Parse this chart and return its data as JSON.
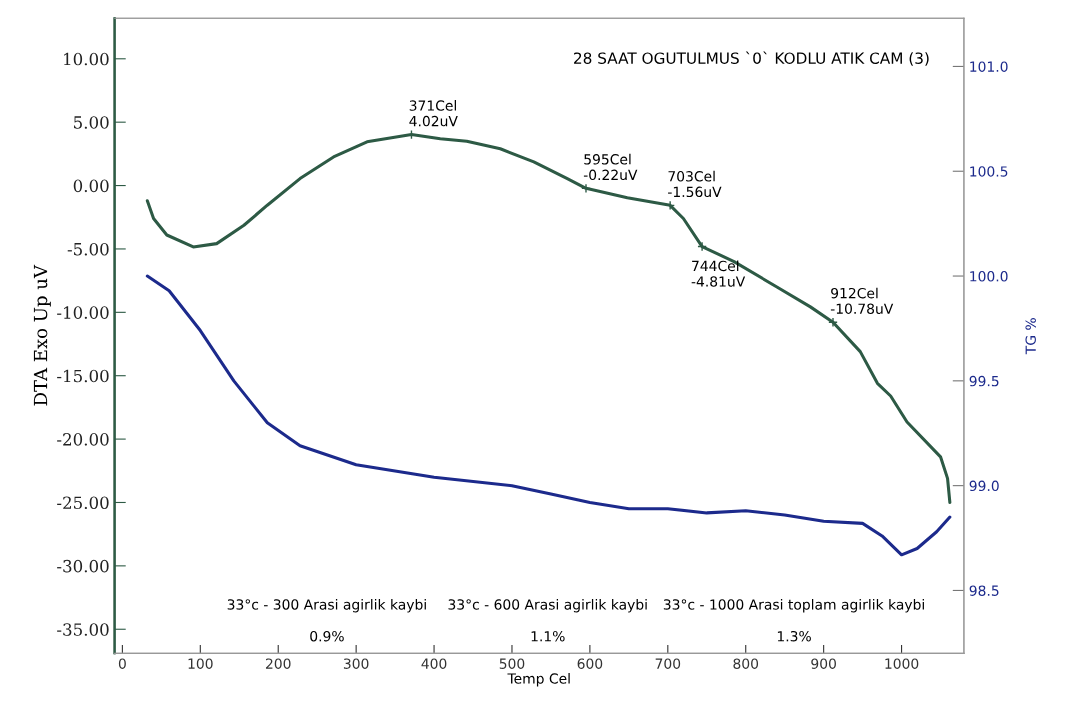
{
  "chart_data": {
    "type": "line",
    "title": "28 SAAT OGUTULMUS `0` KODLU ATIK CAM (3)",
    "xlabel": "Temp Cel",
    "ylabel": "DTA Exo Up uV",
    "y2label": "TG %",
    "xlim": [
      -10,
      1080
    ],
    "xticks": [
      0,
      100,
      200,
      300,
      400,
      500,
      600,
      700,
      800,
      900,
      1000
    ],
    "ylim": [
      -36.9,
      13.2
    ],
    "yticks": [
      {
        "value": 10,
        "label": "10.00"
      },
      {
        "value": 5,
        "label": "5.00"
      },
      {
        "value": 0,
        "label": "0.00"
      },
      {
        "value": -5,
        "label": "-5.00"
      },
      {
        "value": -10,
        "label": "-10.00"
      },
      {
        "value": -15,
        "label": "-15.00"
      },
      {
        "value": -20,
        "label": "-20.00"
      },
      {
        "value": -25,
        "label": "-25.00"
      },
      {
        "value": -30,
        "label": "-30.00"
      },
      {
        "value": -35,
        "label": "-35.00"
      }
    ],
    "y2lim": [
      98.2,
      101.23
    ],
    "y2ticks": [
      {
        "value": 98.5,
        "label": "98.5"
      },
      {
        "value": 99,
        "label": "99.0"
      },
      {
        "value": 99.5,
        "label": "99.5"
      },
      {
        "value": 100,
        "label": "100.0"
      },
      {
        "value": 100.5,
        "label": "100.5"
      },
      {
        "value": 101,
        "label": "101.0"
      }
    ],
    "grid": false,
    "legend": false,
    "line_style": "solid",
    "series": [
      {
        "color": "#2d5a45",
        "x": [
          32,
          40,
          57,
          91,
          121,
          156,
          186,
          228,
          271,
          314,
          371,
          408,
          442,
          485,
          528,
          571,
          595,
          648,
          703,
          720,
          744,
          785,
          840,
          883,
          912,
          947,
          969,
          986,
          1007,
          1050,
          1059,
          1062
        ],
        "values": [
          -1.2,
          -2.6,
          -3.9,
          -4.84,
          -4.58,
          -3.13,
          -1.55,
          0.55,
          2.26,
          3.45,
          4.02,
          3.7,
          3.5,
          2.9,
          1.87,
          0.55,
          -0.22,
          -0.97,
          -1.56,
          -2.6,
          -4.81,
          -6.0,
          -8.0,
          -9.57,
          -10.78,
          -13.1,
          -15.6,
          -16.6,
          -18.65,
          -21.4,
          -23.1,
          -25.0
        ]
      },
      {
        "color": "#1c2a8c",
        "axis": "y2",
        "x": [
          32,
          60,
          100,
          143,
          186,
          228,
          300,
          400,
          500,
          550,
          600,
          650,
          700,
          750,
          800,
          850,
          900,
          950,
          975,
          1000,
          1020,
          1045,
          1062
        ],
        "values": [
          100.0,
          99.93,
          99.74,
          99.5,
          99.3,
          99.19,
          99.1,
          99.04,
          99.0,
          98.96,
          98.92,
          98.89,
          98.89,
          98.87,
          98.88,
          98.86,
          98.83,
          98.82,
          98.76,
          98.67,
          98.7,
          98.78,
          98.85
        ]
      }
    ],
    "annotations": [
      {
        "text": "371Cel\n4.02uV",
        "x": 371,
        "y": 4.02
      },
      {
        "text": "595Cel\n-0.22uV",
        "x": 595,
        "y": -0.22
      },
      {
        "text": "703Cel\n-1.56uV",
        "x": 703,
        "y": -1.56
      },
      {
        "text": "744Cel\n-4.81uV",
        "x": 744,
        "y": -4.81
      },
      {
        "text": "912Cel\n-10.78uV",
        "x": 912,
        "y": -10.78
      },
      "33°c - 300 Arasi agirlik kaybi",
      "0.9%",
      "33°c - 600 Arasi agirlik kaybi",
      "1.1%",
      "33°c - 1000 Arasi toplam agirlik kaybi",
      "1.3%"
    ]
  }
}
